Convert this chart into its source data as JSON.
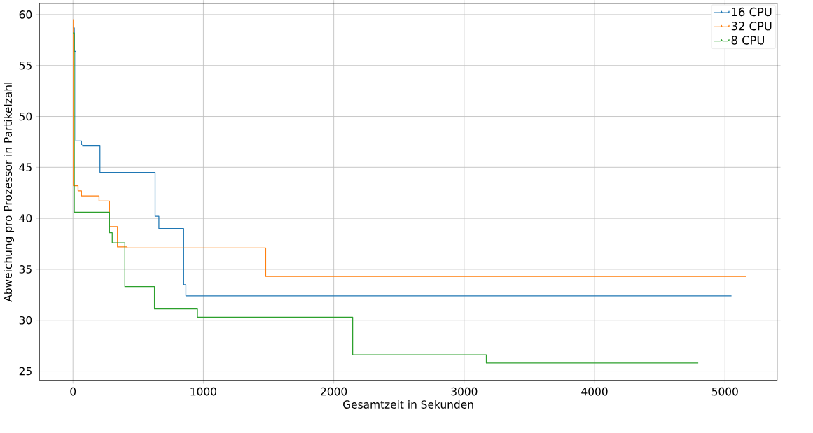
{
  "chart_data": {
    "type": "step",
    "xlabel": "Gesamtzeit in Sekunden",
    "ylabel": "Abweichung pro Prozessor in Partikelzahl",
    "series": [
      {
        "name": "16 CPU",
        "color": "#1f77b4",
        "x": [
          0,
          10,
          22,
          65,
          74,
          207,
          630,
          659,
          849,
          866,
          5050
        ],
        "values": [
          58.7,
          56.4,
          47.6,
          47.2,
          47.1,
          44.5,
          40.2,
          39.0,
          33.5,
          32.4,
          32.4
        ]
      },
      {
        "name": "32 CPU",
        "color": "#ff7f0e",
        "x": [
          0,
          3,
          39,
          65,
          200,
          280,
          341,
          415,
          1478,
          5160
        ],
        "values": [
          59.5,
          43.2,
          42.7,
          42.2,
          41.7,
          39.2,
          37.2,
          37.1,
          34.3,
          34.3
        ]
      },
      {
        "name": "8 CPU",
        "color": "#2ca02c",
        "x": [
          0,
          10,
          280,
          301,
          398,
          625,
          955,
          2145,
          3170,
          4795
        ],
        "values": [
          58.2,
          40.6,
          38.6,
          37.6,
          33.3,
          31.1,
          30.3,
          26.6,
          25.8,
          25.8
        ]
      }
    ],
    "xlim": [
      -257,
      5400
    ],
    "ylim": [
      24.1,
      61.1
    ],
    "xticks": [
      0,
      1000,
      2000,
      3000,
      4000,
      5000
    ],
    "yticks": [
      25,
      30,
      35,
      40,
      45,
      50,
      55,
      60
    ],
    "grid": true,
    "legend": "top right",
    "line_style": "solid",
    "marker": "none"
  }
}
